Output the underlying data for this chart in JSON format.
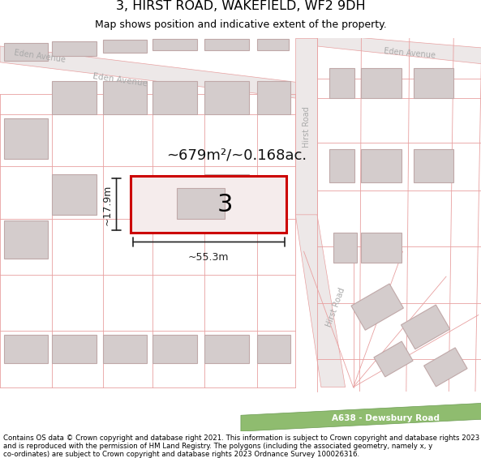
{
  "title": "3, HIRST ROAD, WAKEFIELD, WF2 9DH",
  "subtitle": "Map shows position and indicative extent of the property.",
  "footer": "Contains OS data © Crown copyright and database right 2021. This information is subject to Crown copyright and database rights 2023 and is reproduced with the permission of HM Land Registry. The polygons (including the associated geometry, namely x, y co-ordinates) are subject to Crown copyright and database rights 2023 Ordnance Survey 100026316.",
  "road_label_green": "A638 - Dewsbury Road",
  "plot_label": "3",
  "area_label": "~679m²/~0.168ac.",
  "dim_width": "~55.3m",
  "dim_height": "~17.9m",
  "eden_avenue_label": "Eden Avenue",
  "hirst_road_label": "Hirst Road",
  "map_bg": "#f7f2f2",
  "building_fill": "#d4cccc",
  "building_edge": "#c0a8a8",
  "street_color": "#e8a0a0",
  "road_fill": "#ede8e8",
  "green_road_fill": "#8fbc6f",
  "plot_fill": "#f5ecec",
  "plot_edge": "#cc0000",
  "dim_color": "#222222",
  "label_color": "#aaaaaa",
  "text_color": "#111111"
}
